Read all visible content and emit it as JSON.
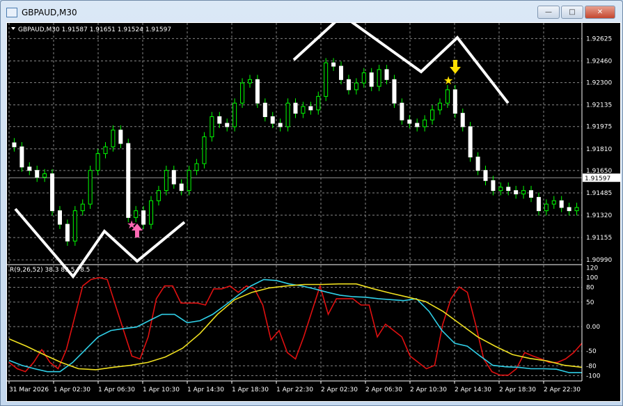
{
  "window": {
    "title": "GBPAUD,M30",
    "minimize": "—",
    "maximize": "□",
    "close": "✕"
  },
  "chart_data": {
    "type": "candlestick",
    "header": "GBPAUD,M30  1.91587 1.91651 1.91524 1.91597",
    "symbol": "GBPAUD",
    "timeframe": "M30",
    "current_price": "1.91597",
    "price_ticks": [
      "1.92625",
      "1.92460",
      "1.92300",
      "1.92135",
      "1.91975",
      "1.91810",
      "1.91650",
      "1.91485",
      "1.91320",
      "1.91155",
      "1.90990"
    ],
    "ylim": [
      1.9096,
      1.9273
    ],
    "time_labels": [
      "31 Mar 2026",
      "1 Apr 02:30",
      "1 Apr 06:30",
      "1 Apr 10:30",
      "1 Apr 14:30",
      "1 Apr 18:30",
      "1 Apr 22:30",
      "2 Apr 02:30",
      "2 Apr 06:30",
      "2 Apr 10:30",
      "2 Apr 14:30",
      "2 Apr 18:30",
      "2 Apr 22:30"
    ],
    "closes": [
      1.91825,
      1.91676,
      1.91651,
      1.91601,
      1.91626,
      1.91353,
      1.91253,
      1.91129,
      1.91353,
      1.91402,
      1.91651,
      1.91775,
      1.91825,
      1.91949,
      1.9185,
      1.91303,
      1.91353,
      1.91253,
      1.91427,
      1.91502,
      1.91651,
      1.91551,
      1.91502,
      1.91651,
      1.91701,
      1.91899,
      1.92048,
      1.91999,
      1.91974,
      1.92148,
      1.92297,
      1.92322,
      1.92148,
      1.92048,
      1.91999,
      1.91974,
      1.92148,
      1.92073,
      1.92123,
      1.92098,
      1.92198,
      1.92446,
      1.92421,
      1.92322,
      1.92247,
      1.92297,
      1.92372,
      1.92272,
      1.92396,
      1.92322,
      1.92148,
      1.92024,
      1.91999,
      1.91974,
      1.92024,
      1.92098,
      1.92148,
      1.92247,
      1.92073,
      1.91974,
      1.9175,
      1.91651,
      1.91576,
      1.91502,
      1.91527,
      1.91502,
      1.91477,
      1.91502,
      1.91452,
      1.91353,
      1.91402,
      1.91427,
      1.91377,
      1.91353,
      1.91377
    ],
    "candle_color": "#00ff00",
    "indicator": {
      "label": "R(9,26,52) 38.3 83.5 ?8.5",
      "ticks": [
        "120",
        "100",
        "80",
        "50",
        "0.00",
        "-50",
        "-80",
        "-100"
      ],
      "tick_values": [
        120,
        100,
        80,
        50,
        0,
        -50,
        -80,
        -100
      ],
      "ylim": [
        -108,
        125
      ],
      "series": [
        {
          "color": "#e01010",
          "values": [
            -73,
            -86,
            -92,
            -73,
            -47,
            -73,
            -86,
            -47,
            18,
            83,
            96,
            100,
            96,
            44,
            -8,
            -60,
            -66,
            -21,
            57,
            83,
            83,
            48,
            48,
            48,
            44,
            77,
            77,
            83,
            70,
            83,
            77,
            44,
            -27,
            -8,
            -53,
            -66,
            -21,
            31,
            83,
            25,
            57,
            57,
            57,
            44,
            44,
            -21,
            5,
            -8,
            -21,
            -60,
            -73,
            -86,
            -79,
            5,
            57,
            81,
            70,
            5,
            -66,
            -92,
            -99,
            -99,
            -86,
            -53,
            -60,
            -66,
            -73,
            -73,
            -66,
            -53,
            -34
          ]
        },
        {
          "color": "#30d0e8",
          "values": [
            -69,
            -79,
            -86,
            -92,
            -92,
            -73,
            -47,
            -21,
            -8,
            -4,
            -1,
            12,
            25,
            25,
            8,
            12,
            25,
            44,
            64,
            83,
            96,
            94,
            87,
            83,
            77,
            70,
            64,
            61,
            60,
            57,
            55,
            53,
            57,
            31,
            -8,
            -34,
            -40,
            -60,
            -79,
            -82,
            -83,
            -86,
            -86,
            -87,
            -94,
            -94
          ]
        },
        {
          "color": "#f0e020",
          "values": [
            -25,
            -40,
            -57,
            -73,
            -86,
            -88,
            -83,
            -79,
            -73,
            -62,
            -44,
            -14,
            25,
            55,
            70,
            79,
            83,
            86,
            86,
            87,
            87,
            77,
            68,
            60,
            51,
            31,
            5,
            -21,
            -40,
            -57,
            -65,
            -70,
            -79,
            -83
          ]
        }
      ]
    },
    "annotations": {
      "buy_color": "#ff69b4",
      "sell_color": "#ffe000",
      "zigzag_color": "#ffffff"
    }
  }
}
